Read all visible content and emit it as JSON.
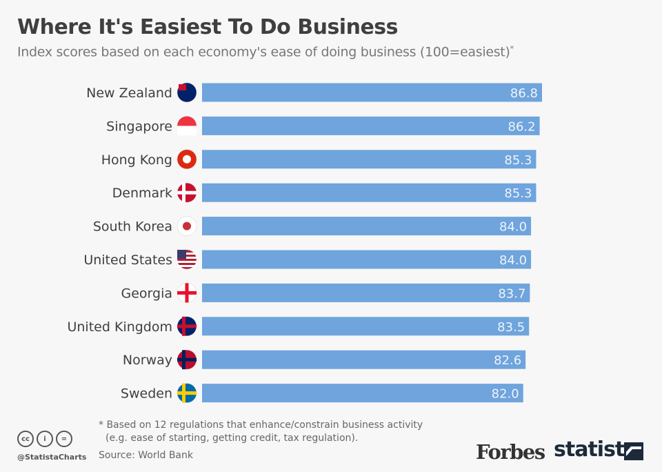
{
  "title": "Where It's Easiest To Do Business",
  "subtitle": "Index scores based on each economy's ease of doing business (100=easiest)",
  "subtitle_mark": "*",
  "chart_data": {
    "type": "bar",
    "orientation": "horizontal",
    "categories": [
      "New Zealand",
      "Singapore",
      "Hong Kong",
      "Denmark",
      "South Korea",
      "United States",
      "Georgia",
      "United Kingdom",
      "Norway",
      "Sweden"
    ],
    "values": [
      86.8,
      86.2,
      85.3,
      85.3,
      84.0,
      84.0,
      83.7,
      83.5,
      82.6,
      82.0
    ],
    "value_labels": [
      "86.8",
      "86.2",
      "85.3",
      "85.3",
      "84.0",
      "84.0",
      "83.7",
      "83.5",
      "82.6",
      "82.0"
    ],
    "xlim": [
      0,
      100
    ],
    "grid": false,
    "bar_color": "#6fa4dd",
    "flag_icons": [
      "new-zealand-flag-icon",
      "singapore-flag-icon",
      "hong-kong-flag-icon",
      "denmark-flag-icon",
      "south-korea-flag-icon",
      "united-states-flag-icon",
      "georgia-flag-icon",
      "united-kingdom-flag-icon",
      "norway-flag-icon",
      "sweden-flag-icon"
    ]
  },
  "footnote_line1": "* Based on 12 regulations that enhance/constrain business activity",
  "footnote_line2": "(e.g. ease of starting, getting credit, tax regulation).",
  "source": "Source: World Bank",
  "handle": "@StatistaCharts",
  "cc_icons": [
    "cc",
    "i",
    "="
  ],
  "logos": {
    "forbes": "Forbes",
    "statista": "statista"
  }
}
